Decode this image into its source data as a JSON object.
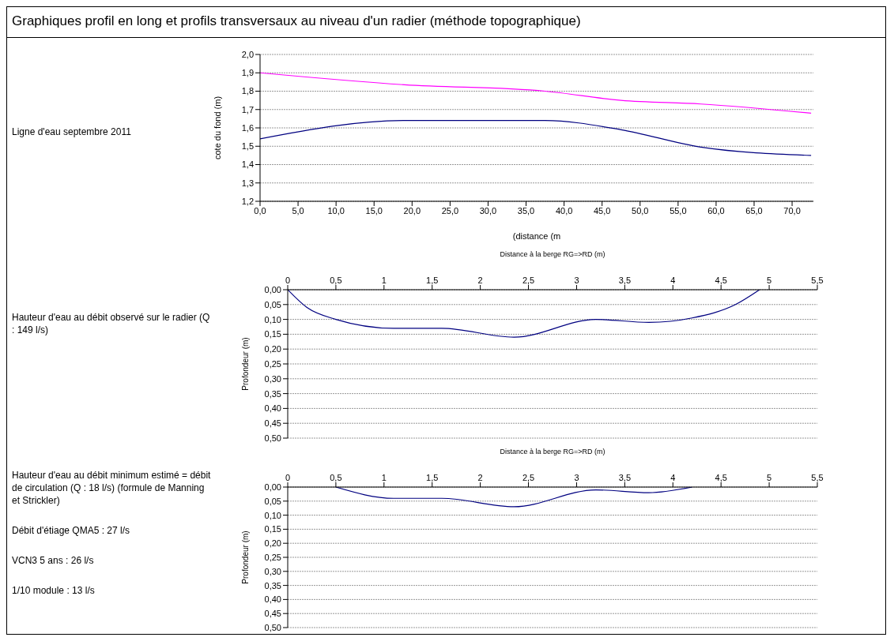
{
  "chart_data": [
    {
      "type": "line",
      "title": "Graphiques profil en long et profils transversaux au niveau d'un radier (méthode topographique)",
      "annotations": [
        "Ligne d'eau septembre 2011"
      ],
      "xlabel": "(distance (m",
      "ylabel": "cote du fond (m)",
      "series": [
        {
          "color": "#ff00ff",
          "x": [
            0,
            19,
            37.5,
            47.5,
            58,
            72.5
          ],
          "values": [
            1.9,
            1.835,
            1.8,
            1.75,
            1.73,
            1.68
          ]
        },
        {
          "color": "#000080",
          "x": [
            0,
            19,
            37.5,
            47.5,
            58,
            72.5
          ],
          "values": [
            1.54,
            1.64,
            1.64,
            1.59,
            1.495,
            1.45
          ]
        }
      ],
      "xlim": [
        0,
        72.8
      ],
      "xticks": [
        {
          "value": 0,
          "label": "0,0"
        },
        {
          "value": 5,
          "label": "5,0"
        },
        {
          "value": 10,
          "label": "10,0"
        },
        {
          "value": 15,
          "label": "15,0"
        },
        {
          "value": 20,
          "label": "20,0"
        },
        {
          "value": 25,
          "label": "25,0"
        },
        {
          "value": 30,
          "label": "30,0"
        },
        {
          "value": 35,
          "label": "35,0"
        },
        {
          "value": 40,
          "label": "40,0"
        },
        {
          "value": 45,
          "label": "45,0"
        },
        {
          "value": 50,
          "label": "50,0"
        },
        {
          "value": 55,
          "label": "55,0"
        },
        {
          "value": 60,
          "label": "60,0"
        },
        {
          "value": 65,
          "label": "65,0"
        },
        {
          "value": 70,
          "label": "70,0"
        }
      ],
      "ylim": [
        1.2,
        2.0
      ],
      "yticks": [
        {
          "value": 1.2,
          "label": "1,2"
        },
        {
          "value": 1.3,
          "label": "1,3"
        },
        {
          "value": 1.4,
          "label": "1,4"
        },
        {
          "value": 1.5,
          "label": "1,5"
        },
        {
          "value": 1.6,
          "label": "1,6"
        },
        {
          "value": 1.7,
          "label": "1,7"
        },
        {
          "value": 1.8,
          "label": "1,8"
        },
        {
          "value": 1.9,
          "label": "1,9"
        },
        {
          "value": 2.0,
          "label": "2,0"
        }
      ],
      "grid": "y",
      "legend": false,
      "marker": "none",
      "line_style": "solid"
    },
    {
      "type": "line",
      "annotations": [
        "Hauteur d'eau au débit observé sur le radier (Q : 149 l/s)"
      ],
      "xlabel": "Distance à la berge RG=>RD (m)",
      "ylabel": "Profondeur (m)",
      "series": [
        {
          "color": "#000080",
          "x": [
            0,
            0.2,
            0.5,
            1.1,
            1.6,
            2.35,
            3.2,
            3.75,
            4.2,
            4.65,
            4.9
          ],
          "values": [
            0,
            0.06,
            0.1,
            0.13,
            0.13,
            0.16,
            0.1,
            0.11,
            0.095,
            0.05,
            0
          ]
        }
      ],
      "xlim": [
        0,
        5.5
      ],
      "xticks": [
        0,
        {
          "value": 0.5,
          "label": "0,5"
        },
        1,
        {
          "value": 1.5,
          "label": "1,5"
        },
        2,
        {
          "value": 2.5,
          "label": "2,5"
        },
        3,
        {
          "value": 3.5,
          "label": "3,5"
        },
        4,
        {
          "value": 4.5,
          "label": "4,5"
        },
        5,
        {
          "value": 5.5,
          "label": "5,5"
        }
      ],
      "ylim": [
        0.5,
        0
      ],
      "yticks": [
        {
          "value": 0,
          "label": "0,00"
        },
        {
          "value": 0.05,
          "label": "0,05"
        },
        {
          "value": 0.1,
          "label": "0,10"
        },
        {
          "value": 0.15,
          "label": "0,15"
        },
        {
          "value": 0.2,
          "label": "0,20"
        },
        {
          "value": 0.25,
          "label": "0,25"
        },
        {
          "value": 0.3,
          "label": "0,30"
        },
        {
          "value": 0.35,
          "label": "0,35"
        },
        {
          "value": 0.4,
          "label": "0,40"
        },
        {
          "value": 0.45,
          "label": "0,45"
        },
        {
          "value": 0.5,
          "label": "0,50"
        }
      ],
      "grid": "y",
      "legend": false,
      "marker": "none",
      "line_style": "solid"
    },
    {
      "type": "line",
      "annotations": [
        "Hauteur d'eau au débit minimum estimé = débit de circulation (Q : 18 l/s) (formule de Manning et Strickler)",
        "Débit d'étiage QMA5 : 27 l/s",
        "VCN3 5 ans : 26 l/s",
        "1/10 module : 13 l/s"
      ],
      "xlabel": "Distance à la berge RG=>RD (m)",
      "ylabel": "Profondeur (m)",
      "series": [
        {
          "color": "#000080",
          "x": [
            0.5,
            1.1,
            1.6,
            2.35,
            3.2,
            3.75,
            4.2
          ],
          "values": [
            0,
            0.04,
            0.04,
            0.07,
            0.01,
            0.02,
            0
          ]
        }
      ],
      "xlim": [
        0,
        5.5
      ],
      "xticks": [
        0,
        {
          "value": 0.5,
          "label": "0,5"
        },
        1,
        {
          "value": 1.5,
          "label": "1,5"
        },
        2,
        {
          "value": 2.5,
          "label": "2,5"
        },
        3,
        {
          "value": 3.5,
          "label": "3,5"
        },
        4,
        {
          "value": 4.5,
          "label": "4,5"
        },
        5,
        {
          "value": 5.5,
          "label": "5,5"
        }
      ],
      "ylim": [
        0.5,
        0
      ],
      "yticks": [
        {
          "value": 0,
          "label": "0,00"
        },
        {
          "value": 0.05,
          "label": "0,05"
        },
        {
          "value": 0.1,
          "label": "0,10"
        },
        {
          "value": 0.15,
          "label": "0,15"
        },
        {
          "value": 0.2,
          "label": "0,20"
        },
        {
          "value": 0.25,
          "label": "0,25"
        },
        {
          "value": 0.3,
          "label": "0,30"
        },
        {
          "value": 0.35,
          "label": "0,35"
        },
        {
          "value": 0.4,
          "label": "0,40"
        },
        {
          "value": 0.45,
          "label": "0,45"
        },
        {
          "value": 0.5,
          "label": "0,50"
        }
      ],
      "grid": "y",
      "legend": false,
      "marker": "none",
      "line_style": "solid"
    }
  ]
}
